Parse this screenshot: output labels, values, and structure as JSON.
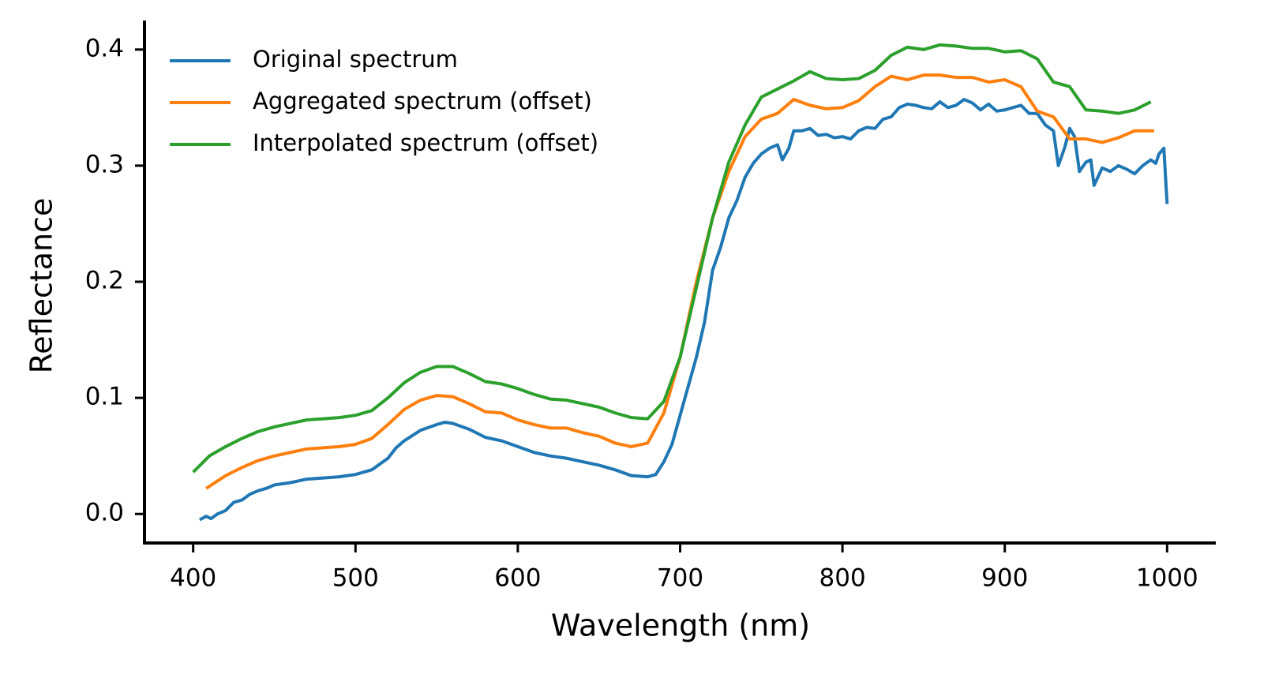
{
  "chart_data": {
    "type": "line",
    "xlabel": "Wavelength (nm)",
    "ylabel": "Reflectance",
    "xlim": [
      370,
      1030
    ],
    "ylim": [
      -0.025,
      0.425
    ],
    "xticks": [
      400,
      500,
      600,
      700,
      800,
      900,
      1000
    ],
    "yticks": [
      {
        "value": 0,
        "label": "0.0"
      },
      0.1,
      0.2,
      0.3,
      0.4
    ],
    "legend": "upper left",
    "series": [
      {
        "name": "Original spectrum",
        "color": "#1f77b4",
        "x": [
          404,
          408,
          411,
          415,
          420,
          425,
          430,
          435,
          440,
          445,
          450,
          460,
          470,
          480,
          490,
          500,
          510,
          520,
          525,
          530,
          540,
          550,
          555,
          560,
          570,
          580,
          590,
          600,
          610,
          620,
          630,
          640,
          650,
          660,
          670,
          680,
          685,
          690,
          695,
          700,
          705,
          710,
          715,
          720,
          725,
          730,
          735,
          740,
          745,
          750,
          755,
          760,
          763,
          767,
          770,
          775,
          780,
          785,
          790,
          795,
          800,
          805,
          810,
          815,
          820,
          825,
          830,
          835,
          840,
          845,
          850,
          855,
          860,
          865,
          870,
          875,
          880,
          885,
          890,
          895,
          900,
          905,
          910,
          915,
          920,
          925,
          930,
          933,
          937,
          940,
          943,
          946,
          950,
          953,
          955,
          960,
          965,
          970,
          975,
          980,
          985,
          990,
          993,
          995,
          998,
          1000
        ],
        "values": [
          -0.005,
          -0.002,
          -0.004,
          0.0,
          0.003,
          0.01,
          0.012,
          0.017,
          0.02,
          0.022,
          0.025,
          0.027,
          0.03,
          0.031,
          0.032,
          0.034,
          0.038,
          0.048,
          0.057,
          0.063,
          0.072,
          0.077,
          0.079,
          0.078,
          0.073,
          0.066,
          0.063,
          0.058,
          0.053,
          0.05,
          0.048,
          0.045,
          0.042,
          0.038,
          0.033,
          0.032,
          0.034,
          0.045,
          0.06,
          0.085,
          0.11,
          0.135,
          0.165,
          0.21,
          0.23,
          0.255,
          0.27,
          0.29,
          0.302,
          0.31,
          0.315,
          0.318,
          0.305,
          0.315,
          0.33,
          0.33,
          0.332,
          0.326,
          0.327,
          0.324,
          0.325,
          0.323,
          0.33,
          0.333,
          0.332,
          0.34,
          0.342,
          0.35,
          0.353,
          0.352,
          0.35,
          0.349,
          0.355,
          0.35,
          0.352,
          0.357,
          0.354,
          0.348,
          0.353,
          0.347,
          0.348,
          0.35,
          0.352,
          0.345,
          0.345,
          0.335,
          0.33,
          0.3,
          0.316,
          0.332,
          0.325,
          0.295,
          0.303,
          0.305,
          0.283,
          0.298,
          0.295,
          0.3,
          0.297,
          0.293,
          0.3,
          0.305,
          0.302,
          0.31,
          0.315,
          0.267
        ]
      },
      {
        "name": "Aggregated spectrum (offset)",
        "color": "#ff7f0e",
        "x": [
          408,
          420,
          430,
          440,
          450,
          460,
          470,
          480,
          490,
          500,
          510,
          520,
          530,
          540,
          550,
          560,
          570,
          580,
          590,
          600,
          610,
          620,
          630,
          640,
          650,
          660,
          670,
          680,
          690,
          700,
          710,
          720,
          730,
          740,
          750,
          760,
          770,
          780,
          790,
          800,
          810,
          820,
          830,
          840,
          850,
          860,
          870,
          880,
          890,
          900,
          910,
          920,
          930,
          940,
          950,
          960,
          970,
          980,
          992
        ],
        "values": [
          0.022,
          0.033,
          0.04,
          0.046,
          0.05,
          0.053,
          0.056,
          0.057,
          0.058,
          0.06,
          0.065,
          0.077,
          0.09,
          0.098,
          0.102,
          0.101,
          0.095,
          0.088,
          0.087,
          0.081,
          0.077,
          0.074,
          0.074,
          0.07,
          0.067,
          0.061,
          0.058,
          0.061,
          0.087,
          0.135,
          0.2,
          0.255,
          0.295,
          0.325,
          0.34,
          0.345,
          0.357,
          0.352,
          0.349,
          0.35,
          0.356,
          0.368,
          0.377,
          0.374,
          0.378,
          0.378,
          0.376,
          0.376,
          0.372,
          0.374,
          0.368,
          0.347,
          0.342,
          0.323,
          0.323,
          0.32,
          0.324,
          0.33,
          0.33
        ]
      },
      {
        "name": "Interpolated spectrum (offset)",
        "color": "#2ca02c",
        "x": [
          400,
          410,
          420,
          430,
          440,
          450,
          460,
          470,
          480,
          490,
          500,
          510,
          520,
          530,
          540,
          550,
          560,
          570,
          580,
          590,
          600,
          610,
          620,
          630,
          640,
          650,
          660,
          670,
          680,
          690,
          700,
          710,
          720,
          730,
          740,
          750,
          760,
          770,
          780,
          790,
          800,
          810,
          820,
          830,
          840,
          850,
          860,
          870,
          880,
          890,
          900,
          910,
          920,
          930,
          940,
          950,
          960,
          970,
          980,
          990
        ],
        "values": [
          0.036,
          0.05,
          0.058,
          0.065,
          0.071,
          0.075,
          0.078,
          0.081,
          0.082,
          0.083,
          0.085,
          0.089,
          0.1,
          0.113,
          0.122,
          0.127,
          0.127,
          0.121,
          0.114,
          0.112,
          0.108,
          0.103,
          0.099,
          0.098,
          0.095,
          0.092,
          0.087,
          0.083,
          0.082,
          0.097,
          0.135,
          0.195,
          0.255,
          0.303,
          0.335,
          0.359,
          0.366,
          0.373,
          0.381,
          0.375,
          0.374,
          0.375,
          0.382,
          0.395,
          0.402,
          0.4,
          0.404,
          0.403,
          0.401,
          0.401,
          0.398,
          0.399,
          0.392,
          0.372,
          0.368,
          0.348,
          0.347,
          0.345,
          0.348,
          0.355
        ]
      }
    ]
  }
}
